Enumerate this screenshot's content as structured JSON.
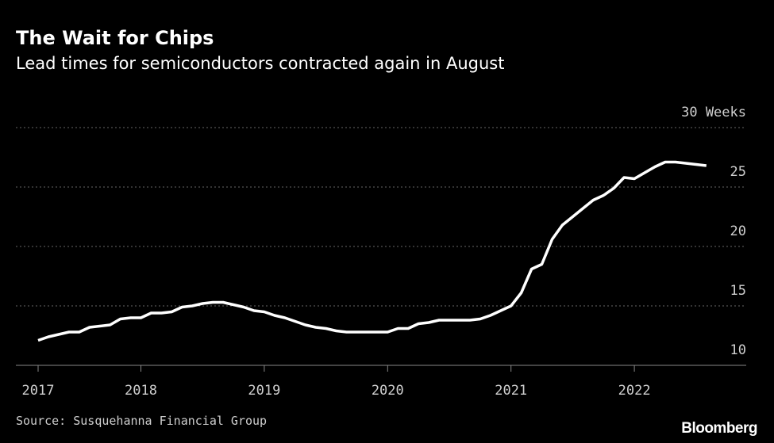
{
  "chart_data": {
    "type": "line",
    "title": "The Wait for Chips",
    "subtitle": "Lead times for semiconductors contracted again in August",
    "source": "Source: Susquehanna Financial Group",
    "logo": "Bloomberg",
    "categories": [
      "2017",
      null,
      null,
      null,
      null,
      null,
      null,
      null,
      null,
      null,
      "2018",
      null,
      null,
      null,
      null,
      null,
      null,
      null,
      null,
      null,
      null,
      null,
      "2019",
      null,
      null,
      null,
      null,
      null,
      null,
      null,
      null,
      null,
      null,
      null,
      "2020",
      null,
      null,
      null,
      null,
      null,
      null,
      null,
      null,
      null,
      null,
      null,
      "2021",
      null,
      null,
      null,
      null,
      null,
      null,
      null,
      null,
      null,
      null,
      null,
      "2022",
      null,
      null,
      null,
      null,
      null,
      null,
      null
    ],
    "values": [
      12.1,
      12.4,
      12.6,
      12.8,
      12.8,
      13.2,
      13.3,
      13.4,
      13.9,
      14.0,
      14.0,
      14.4,
      14.4,
      14.5,
      14.9,
      15.0,
      15.2,
      15.3,
      15.3,
      15.1,
      14.9,
      14.6,
      14.5,
      14.2,
      14.0,
      13.7,
      13.4,
      13.2,
      13.1,
      12.9,
      12.8,
      12.8,
      12.8,
      12.8,
      12.8,
      13.1,
      13.1,
      13.5,
      13.6,
      13.8,
      13.8,
      13.8,
      13.8,
      13.9,
      14.2,
      14.6,
      15.0,
      16.1,
      18.1,
      18.5,
      20.6,
      21.8,
      22.5,
      23.2,
      23.9,
      24.3,
      24.9,
      25.8,
      25.7,
      26.2,
      26.7,
      27.1,
      27.1,
      27.0,
      26.9,
      26.8
    ],
    "color": "#ffffff",
    "ylim": [
      10,
      30
    ],
    "yticks": [
      10,
      15,
      20,
      25,
      {
        "value": 30,
        "label": "30 Weeks"
      }
    ],
    "grid": true
  }
}
